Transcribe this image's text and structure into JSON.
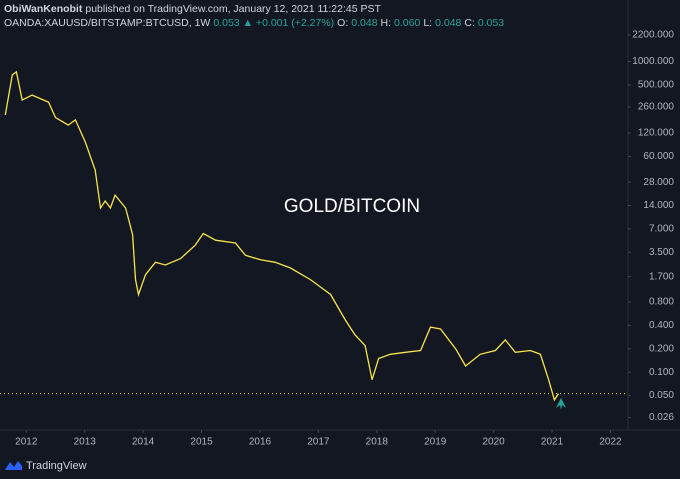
{
  "header": {
    "author": "ObiWanKenobit",
    "published": "published on TradingView.com, January 12, 2021 11:22:45 PST",
    "symbol": "OANDA:XAUUSD/BITSTAMP:BTCUSD, 1W",
    "last": "0.053",
    "change": "▲ +0.001 (+2.27%)",
    "o_label": "O:",
    "o": "0.048",
    "h_label": "H:",
    "h": "0.060",
    "l_label": "L:",
    "l": "0.048",
    "c_label": "C:",
    "c": "0.053"
  },
  "footer": {
    "brand": "TradingView"
  },
  "chart_data": {
    "type": "line",
    "annotation": "GOLD/BITCOIN",
    "log_scale": true,
    "x": [
      2011.64,
      2011.76,
      2011.83,
      2011.93,
      2012.1,
      2012.38,
      2012.5,
      2012.72,
      2012.84,
      2013.01,
      2013.18,
      2013.27,
      2013.35,
      2013.44,
      2013.52,
      2013.7,
      2013.82,
      2013.87,
      2013.92,
      2014.04,
      2014.21,
      2014.38,
      2014.64,
      2014.89,
      2015.03,
      2015.24,
      2015.58,
      2015.75,
      2016.01,
      2016.26,
      2016.52,
      2016.86,
      2017.21,
      2017.46,
      2017.63,
      2017.8,
      2017.92,
      2018.03,
      2018.23,
      2018.49,
      2018.75,
      2018.92,
      2019.09,
      2019.35,
      2019.52,
      2019.77,
      2020.03,
      2020.2,
      2020.37,
      2020.63,
      2020.8,
      2020.94,
      2021.04,
      2021.11
    ],
    "series": [
      {
        "name": "XAUUSD/BTCUSD",
        "color": "#f7e34a",
        "values": [
          205,
          672,
          735,
          320,
          370,
          300,
          190,
          152,
          177,
          92,
          40,
          13,
          16,
          13,
          19,
          13,
          5.9,
          1.56,
          1.0,
          1.8,
          2.6,
          2.4,
          2.9,
          4.3,
          6.1,
          5.0,
          4.6,
          3.2,
          2.8,
          2.6,
          2.2,
          1.56,
          1.0,
          0.47,
          0.3,
          0.22,
          0.08,
          0.15,
          0.17,
          0.18,
          0.19,
          0.38,
          0.36,
          0.2,
          0.12,
          0.17,
          0.19,
          0.26,
          0.18,
          0.19,
          0.17,
          0.08,
          0.044,
          0.053
        ]
      }
    ],
    "xlim": [
      2011.55,
      2022.3
    ],
    "xticks": [
      2012,
      2013,
      2014,
      2015,
      2016,
      2017,
      2018,
      2019,
      2020,
      2021,
      2022
    ],
    "ylim": [
      0.018,
      6200
    ],
    "yticks": [
      {
        "value": 2200,
        "label": "2200.000"
      },
      {
        "value": 1000,
        "label": "1000.000"
      },
      {
        "value": 500,
        "label": "500.000"
      },
      {
        "value": 260,
        "label": "260.000"
      },
      {
        "value": 120,
        "label": "120.000"
      },
      {
        "value": 60,
        "label": "60.000"
      },
      {
        "value": 28,
        "label": "28.000"
      },
      {
        "value": 14,
        "label": "14.000"
      },
      {
        "value": 7,
        "label": "7.000"
      },
      {
        "value": 3.5,
        "label": "3.500"
      },
      {
        "value": 1.7,
        "label": "1.700"
      },
      {
        "value": 0.8,
        "label": "0.800"
      },
      {
        "value": 0.4,
        "label": "0.400"
      },
      {
        "value": 0.2,
        "label": "0.200"
      },
      {
        "value": 0.1,
        "label": "0.100"
      },
      {
        "value": 0.05,
        "label": "0.050"
      },
      {
        "value": 0.026,
        "label": "0.026"
      }
    ],
    "grid": false
  }
}
